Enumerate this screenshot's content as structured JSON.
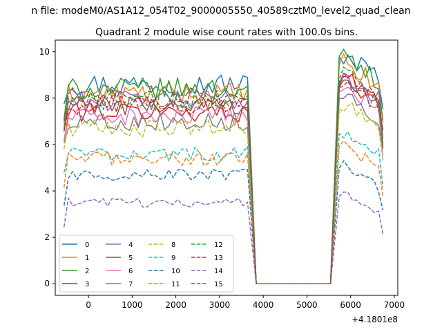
{
  "chart_data": {
    "type": "line",
    "suptitle": "n file: modeM0/AS1A12_054T02_9000005550_40589cztM0_level2_quad_clean",
    "title": "Quadrant 2 module wise count rates with 100.0s bins.",
    "xlabel": "",
    "ylabel": "",
    "x_offset_label": "+4.1801e8",
    "xlim": [
      -760,
      7080
    ],
    "ylim": [
      -0.5,
      10.5
    ],
    "x_ticks": [
      0,
      1000,
      2000,
      3000,
      4000,
      5000,
      6000,
      7000
    ],
    "x_tick_labels": [
      "0",
      "1000",
      "2000",
      "3000",
      "4000",
      "5000",
      "6000",
      "7000"
    ],
    "y_ticks": [
      0,
      2,
      4,
      6,
      8,
      10
    ],
    "y_tick_labels": [
      "0",
      "2",
      "4",
      "6",
      "8",
      "10"
    ],
    "grid": false,
    "legend_position": "lower-left",
    "legend_columns": 4,
    "x_bins": {
      "active_segment_1": {
        "start": -560,
        "end": 3640,
        "step": 100
      },
      "gap": {
        "start": 3840,
        "end": 5540,
        "value": 0
      },
      "active_segment_2": {
        "start": 5740,
        "end": 6740,
        "step": 100
      }
    },
    "series": [
      {
        "name": "0",
        "color": "#1f77b4",
        "dash": "solid",
        "mean": 8.6,
        "peak2": 10.0
      },
      {
        "name": "1",
        "color": "#ff7f0e",
        "dash": "solid",
        "mean": 8.2,
        "peak2": 9.6
      },
      {
        "name": "2",
        "color": "#2ca02c",
        "dash": "solid",
        "mean": 8.4,
        "peak2": 9.9
      },
      {
        "name": "3",
        "color": "#d62728",
        "dash": "solid",
        "mean": 7.4,
        "peak2": 9.0
      },
      {
        "name": "4",
        "color": "#9467bd",
        "dash": "solid",
        "mean": 7.9,
        "peak2": 9.1
      },
      {
        "name": "5",
        "color": "#8c564b",
        "dash": "solid",
        "mean": 7.7,
        "peak2": 8.9
      },
      {
        "name": "6",
        "color": "#e377c2",
        "dash": "solid",
        "mean": 7.2,
        "peak2": 8.6
      },
      {
        "name": "7",
        "color": "#7f7f7f",
        "dash": "solid",
        "mean": 7.0,
        "peak2": 8.3
      },
      {
        "name": "8",
        "color": "#bcbd22",
        "dash": "dashed",
        "mean": 6.7,
        "peak2": 7.8
      },
      {
        "name": "9",
        "color": "#17becf",
        "dash": "dashed",
        "mean": 5.6,
        "peak2": 6.7
      },
      {
        "name": "10",
        "color": "#1f77b4",
        "dash": "dashed",
        "mean": 4.7,
        "peak2": 5.2
      },
      {
        "name": "11",
        "color": "#ff7f0e",
        "dash": "dashed",
        "mean": 5.4,
        "peak2": 6.1
      },
      {
        "name": "12",
        "color": "#2ca02c",
        "dash": "dashed",
        "mean": 7.9,
        "peak2": 9.3
      },
      {
        "name": "13",
        "color": "#d62728",
        "dash": "dashed",
        "mean": 7.7,
        "peak2": 9.0
      },
      {
        "name": "14",
        "color": "#9467bd",
        "dash": "dashed",
        "mean": 3.5,
        "peak2": 4.1
      },
      {
        "name": "15",
        "color": "#8c564b",
        "dash": "dashed",
        "mean": 8.0,
        "peak2": 8.8
      }
    ]
  }
}
